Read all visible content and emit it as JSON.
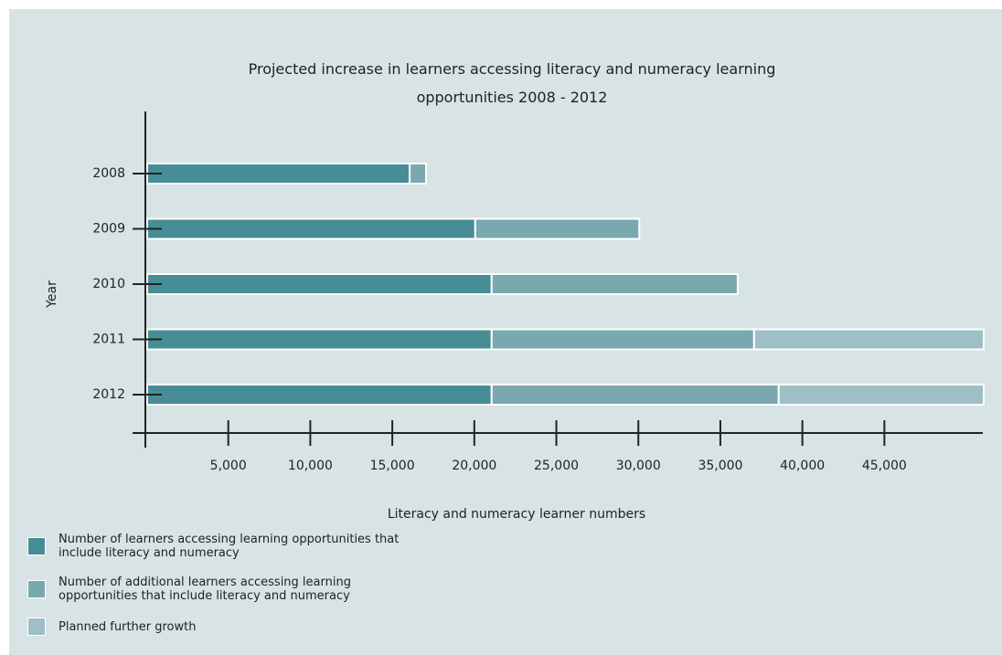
{
  "chart_data": {
    "type": "stacked-bar-horizontal",
    "title": "Projected increase in learners accessing literacy and numeracy learning opportunities 2008 - 2012",
    "x_label": "Literacy and numeracy learner numbers",
    "y_label": "Year",
    "categories": [
      "2008",
      "2009",
      "2010",
      "2011",
      "2012"
    ],
    "series": [
      {
        "name": "Number of learners accessing learning opportunities that include literacy and numeracy",
        "color": "#478d96",
        "values": [
          16000,
          20000,
          21000,
          21000,
          21000
        ]
      },
      {
        "name": "Number of additional learners accessing learning opportunities that include literacy and numeracy",
        "color": "#7aa8af",
        "values": [
          1000,
          10000,
          15000,
          16000,
          17500
        ]
      },
      {
        "name": "Planned further growth",
        "color": "#9dbfc5",
        "values": [
          null,
          null,
          null,
          14000,
          12500
        ]
      }
    ],
    "xlim": [
      0,
      51000
    ],
    "xticks": [
      {
        "value": 5000,
        "label": "5,000"
      },
      {
        "value": 10000,
        "label": "10,000"
      },
      {
        "value": 15000,
        "label": "15,000"
      },
      {
        "value": 20000,
        "label": "20,000"
      },
      {
        "value": 25000,
        "label": "25,000"
      },
      {
        "value": 30000,
        "label": "30,000"
      },
      {
        "value": 35000,
        "label": "35,000"
      },
      {
        "value": 40000,
        "label": "40,000"
      },
      {
        "value": 45000,
        "label": "45,000"
      }
    ]
  }
}
